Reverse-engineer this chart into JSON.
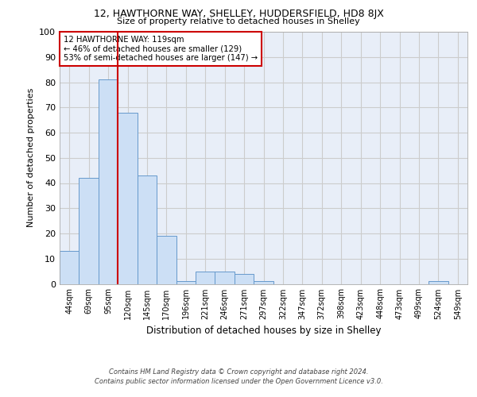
{
  "title_line1": "12, HAWTHORNE WAY, SHELLEY, HUDDERSFIELD, HD8 8JX",
  "title_line2": "Size of property relative to detached houses in Shelley",
  "xlabel": "Distribution of detached houses by size in Shelley",
  "ylabel": "Number of detached properties",
  "bar_labels": [
    "44sqm",
    "69sqm",
    "95sqm",
    "120sqm",
    "145sqm",
    "170sqm",
    "196sqm",
    "221sqm",
    "246sqm",
    "271sqm",
    "297sqm",
    "322sqm",
    "347sqm",
    "372sqm",
    "398sqm",
    "423sqm",
    "448sqm",
    "473sqm",
    "499sqm",
    "524sqm",
    "549sqm"
  ],
  "bar_values": [
    13,
    42,
    81,
    68,
    43,
    19,
    1,
    5,
    5,
    4,
    1,
    0,
    0,
    0,
    0,
    0,
    0,
    0,
    0,
    1,
    0
  ],
  "bar_color": "#ccdff5",
  "bar_edge_color": "#6699cc",
  "vline_color": "#cc0000",
  "grid_color": "#cccccc",
  "background_color": "#e8eef8",
  "annotation_box_color": "#ffffff",
  "annotation_box_edge": "#cc0000",
  "annotation_line1": "12 HAWTHORNE WAY: 119sqm",
  "annotation_line2": "← 46% of detached houses are smaller (129)",
  "annotation_line3": "53% of semi-detached houses are larger (147) →",
  "footer_line1": "Contains HM Land Registry data © Crown copyright and database right 2024.",
  "footer_line2": "Contains public sector information licensed under the Open Government Licence v3.0.",
  "ylim": [
    0,
    100
  ],
  "yticks": [
    0,
    10,
    20,
    30,
    40,
    50,
    60,
    70,
    80,
    90,
    100
  ],
  "vline_x_index": 3
}
